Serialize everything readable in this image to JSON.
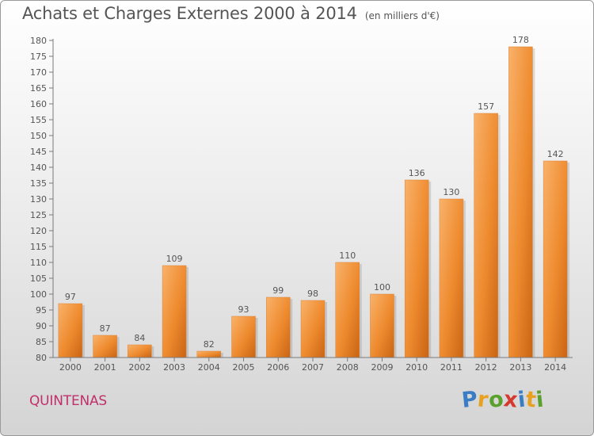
{
  "chart_title": "Achats et Charges Externes 2000 à 2014",
  "chart_unit": "(en milliers d'€)",
  "commune": "QUINTENAS",
  "logo": {
    "letters": [
      "P",
      "r",
      "o",
      "x",
      "i",
      "t",
      "i"
    ],
    "colors": [
      "#3b7dc4",
      "#e8a020",
      "#5aa02c",
      "#d43a2f",
      "#3b7dc4",
      "#e8a020",
      "#5aa02c"
    ]
  },
  "colors": {
    "bar": "#f08c30",
    "bar_light": "#f7a95c",
    "bar_dark": "#c96414",
    "text": "#555555",
    "grid": "#cfcfcf"
  },
  "chart_data": {
    "type": "bar",
    "title": "Achats et Charges Externes 2000 à 2014",
    "subtitle": "(en milliers d'€)",
    "categories": [
      "2000",
      "2001",
      "2002",
      "2003",
      "2004",
      "2005",
      "2006",
      "2007",
      "2008",
      "2009",
      "2010",
      "2011",
      "2012",
      "2013",
      "2014"
    ],
    "values": [
      97,
      87,
      84,
      109,
      82,
      93,
      99,
      98,
      110,
      100,
      136,
      130,
      157,
      178,
      142
    ],
    "data_labels": [
      "97",
      "87",
      "84",
      "109",
      "82",
      "93",
      "99",
      "98",
      "110",
      "100",
      "136",
      "130",
      "157",
      "178",
      "142"
    ],
    "yticks": [
      "80",
      "85",
      "90",
      "95",
      "100",
      "105",
      "110",
      "115",
      "120",
      "125",
      "130",
      "135",
      "140",
      "145",
      "150",
      "155",
      "160",
      "165",
      "170",
      "175",
      "180"
    ],
    "ylim": [
      80,
      180
    ],
    "grid": false,
    "legend": "none"
  }
}
